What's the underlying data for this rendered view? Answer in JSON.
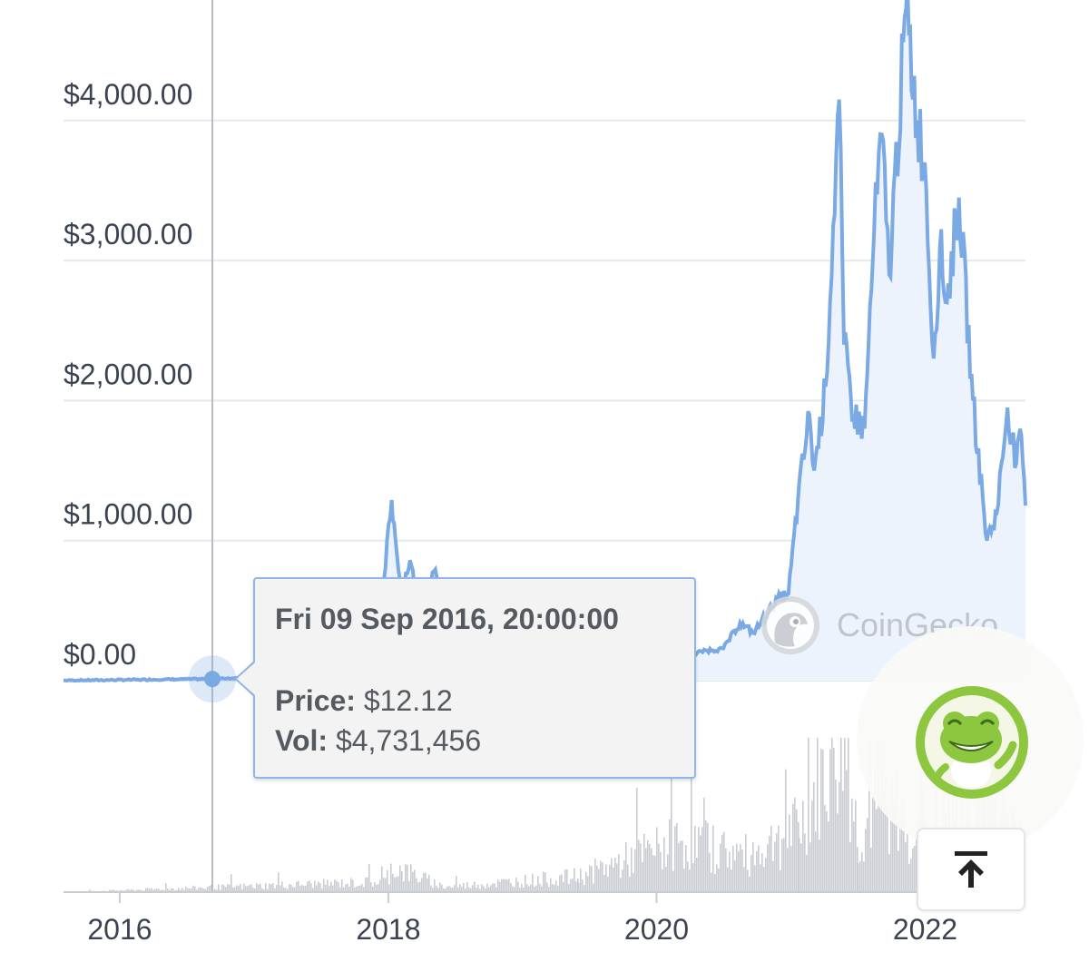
{
  "chart_data": {
    "type": "line",
    "y_axis": {
      "tick_labels": [
        "$0.00",
        "$1,000.00",
        "$2,000.00",
        "$3,000.00",
        "$4,000.00"
      ],
      "tick_values": [
        0,
        1000,
        2000,
        3000,
        4000
      ],
      "range": [
        0,
        4800
      ]
    },
    "x_axis": {
      "tick_labels": [
        "2016",
        "2018",
        "2020",
        "2022"
      ],
      "range": [
        "2015-08-01",
        "2022-10-01"
      ]
    },
    "grid": true,
    "series": [
      {
        "values": [
          [
            "2015-08-01",
            1
          ],
          [
            "2016-06-01",
            10
          ],
          [
            "2016-09-09",
            12.12
          ],
          [
            "2017-03-01",
            30
          ],
          [
            "2017-06-10",
            280
          ],
          [
            "2017-08-01",
            220
          ],
          [
            "2017-09-01",
            330
          ],
          [
            "2017-11-01",
            300
          ],
          [
            "2017-12-20",
            720
          ],
          [
            "2018-01-10",
            1290
          ],
          [
            "2018-01-20",
            1020
          ],
          [
            "2018-02-06",
            650
          ],
          [
            "2018-03-01",
            860
          ],
          [
            "2018-04-05",
            380
          ],
          [
            "2018-05-05",
            780
          ],
          [
            "2018-06-20",
            450
          ],
          [
            "2018-08-15",
            290
          ],
          [
            "2018-09-15",
            200
          ],
          [
            "2018-11-25",
            110
          ],
          [
            "2019-01-15",
            120
          ],
          [
            "2019-03-20",
            140
          ],
          [
            "2019-06-25",
            310
          ],
          [
            "2019-08-15",
            190
          ],
          [
            "2019-10-20",
            180
          ],
          [
            "2019-12-15",
            130
          ],
          [
            "2020-02-14",
            270
          ],
          [
            "2020-03-13",
            110
          ],
          [
            "2020-05-01",
            210
          ],
          [
            "2020-07-01",
            230
          ],
          [
            "2020-08-15",
            410
          ],
          [
            "2020-09-20",
            340
          ],
          [
            "2020-11-25",
            580
          ],
          [
            "2020-12-25",
            620
          ],
          [
            "2021-01-20",
            1300
          ],
          [
            "2021-02-20",
            1900
          ],
          [
            "2021-03-05",
            1500
          ],
          [
            "2021-04-05",
            2100
          ],
          [
            "2021-05-12",
            4150
          ],
          [
            "2021-05-25",
            2400
          ],
          [
            "2021-06-20",
            1900
          ],
          [
            "2021-07-20",
            1800
          ],
          [
            "2021-08-15",
            3200
          ],
          [
            "2021-09-05",
            3900
          ],
          [
            "2021-09-25",
            2900
          ],
          [
            "2021-11-10",
            4800
          ],
          [
            "2021-12-10",
            4000
          ],
          [
            "2021-12-31",
            3700
          ],
          [
            "2022-01-24",
            2300
          ],
          [
            "2022-02-10",
            3100
          ],
          [
            "2022-03-01",
            2700
          ],
          [
            "2022-04-03",
            3450
          ],
          [
            "2022-05-11",
            2000
          ],
          [
            "2022-06-18",
            1000
          ],
          [
            "2022-07-15",
            1200
          ],
          [
            "2022-08-13",
            1950
          ],
          [
            "2022-09-06",
            1550
          ],
          [
            "2022-09-20",
            1750
          ],
          [
            "2022-10-01",
            1250
          ]
        ]
      }
    ],
    "volume_series": {
      "values": [
        [
          "2015-08-01",
          0
        ],
        [
          "2017-12-20",
          2
        ],
        [
          "2018-01-10",
          5
        ],
        [
          "2018-06-01",
          1
        ],
        [
          "2019-06-01",
          3
        ],
        [
          "2020-03-13",
          10
        ],
        [
          "2020-09-01",
          7
        ],
        [
          "2021-01-20",
          12
        ],
        [
          "2021-05-19",
          30
        ],
        [
          "2021-07-01",
          10
        ],
        [
          "2021-09-07",
          18
        ],
        [
          "2021-12-01",
          12
        ],
        [
          "2022-05-11",
          16
        ],
        [
          "2022-06-18",
          20
        ],
        [
          "2022-10-01",
          10
        ]
      ]
    },
    "crosshair_date": "2016-09-09"
  },
  "tooltip": {
    "date": "Fri 09 Sep 2016, 20:00:00",
    "price_label": "Price:",
    "price_value": "$12.12",
    "vol_label": "Vol:",
    "vol_value": "$4,731,456"
  },
  "watermark": {
    "text": "CoinGecko"
  },
  "colors": {
    "line": "#7ba9e3",
    "area_top": "#e9f0fb",
    "grid": "#e6e8eb",
    "volume": "#c9ccd3",
    "crosshair": "#b7bcc4"
  },
  "controls": {
    "scroll_top_icon": "arrow-up-to-line-icon",
    "badge_icon": "gecko-mascot-icon"
  }
}
